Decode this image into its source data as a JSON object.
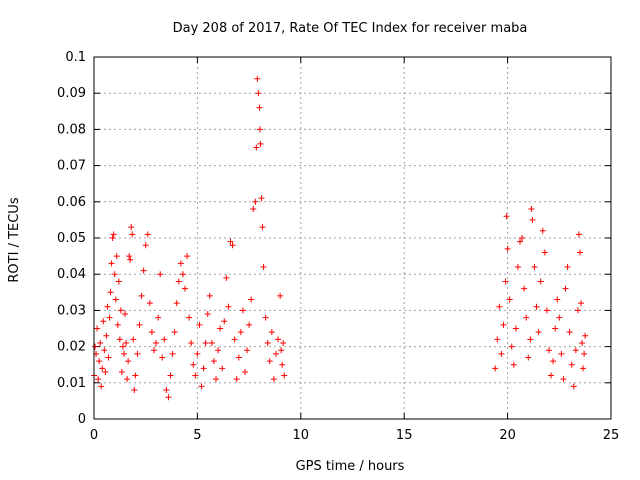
{
  "chart_data": {
    "type": "scatter",
    "title": "Day 208 of 2017, Rate Of TEC Index for receiver maba",
    "xlabel": "GPS time / hours",
    "ylabel": "ROTI / TECUs",
    "xlim": [
      0,
      25
    ],
    "ylim": [
      0,
      0.1
    ],
    "xticks": [
      "0",
      "5",
      "10",
      "15",
      "20",
      "25"
    ],
    "yticks": [
      "0",
      "0.01",
      "0.02",
      "0.03",
      "0.04",
      "0.05",
      "0.06",
      "0.07",
      "0.08",
      "0.09",
      "0.1"
    ],
    "grid": true,
    "marker": "+",
    "color": "#ff0000",
    "series": [
      {
        "points": [
          [
            0.0,
            0.012
          ],
          [
            0.05,
            0.02
          ],
          [
            0.1,
            0.018
          ],
          [
            0.15,
            0.025
          ],
          [
            0.2,
            0.011
          ],
          [
            0.25,
            0.016
          ],
          [
            0.3,
            0.021
          ],
          [
            0.35,
            0.009
          ],
          [
            0.4,
            0.014
          ],
          [
            0.45,
            0.027
          ],
          [
            0.5,
            0.019
          ],
          [
            0.55,
            0.013
          ],
          [
            0.6,
            0.023
          ],
          [
            0.65,
            0.031
          ],
          [
            0.7,
            0.017
          ],
          [
            0.75,
            0.028
          ],
          [
            0.8,
            0.035
          ],
          [
            0.85,
            0.043
          ],
          [
            0.9,
            0.05
          ],
          [
            0.95,
            0.051
          ],
          [
            1.0,
            0.04
          ],
          [
            1.05,
            0.033
          ],
          [
            1.1,
            0.045
          ],
          [
            1.15,
            0.026
          ],
          [
            1.2,
            0.038
          ],
          [
            1.25,
            0.022
          ],
          [
            1.3,
            0.03
          ],
          [
            1.35,
            0.013
          ],
          [
            1.4,
            0.02
          ],
          [
            1.45,
            0.018
          ],
          [
            1.5,
            0.029
          ],
          [
            1.55,
            0.021
          ],
          [
            1.6,
            0.011
          ],
          [
            1.65,
            0.016
          ],
          [
            1.7,
            0.045
          ],
          [
            1.75,
            0.044
          ],
          [
            1.8,
            0.053
          ],
          [
            1.85,
            0.051
          ],
          [
            1.9,
            0.022
          ],
          [
            1.95,
            0.008
          ],
          [
            2.0,
            0.012
          ],
          [
            2.1,
            0.018
          ],
          [
            2.2,
            0.026
          ],
          [
            2.3,
            0.034
          ],
          [
            2.4,
            0.041
          ],
          [
            2.5,
            0.048
          ],
          [
            2.6,
            0.051
          ],
          [
            2.7,
            0.032
          ],
          [
            2.8,
            0.024
          ],
          [
            2.9,
            0.019
          ],
          [
            3.0,
            0.021
          ],
          [
            3.1,
            0.028
          ],
          [
            3.2,
            0.04
          ],
          [
            3.3,
            0.017
          ],
          [
            3.4,
            0.022
          ],
          [
            3.5,
            0.008
          ],
          [
            3.6,
            0.006
          ],
          [
            3.7,
            0.012
          ],
          [
            3.8,
            0.018
          ],
          [
            3.9,
            0.024
          ],
          [
            4.0,
            0.032
          ],
          [
            4.1,
            0.038
          ],
          [
            4.2,
            0.043
          ],
          [
            4.3,
            0.04
          ],
          [
            4.4,
            0.036
          ],
          [
            4.5,
            0.045
          ],
          [
            4.6,
            0.028
          ],
          [
            4.7,
            0.021
          ],
          [
            4.8,
            0.015
          ],
          [
            4.9,
            0.012
          ],
          [
            5.0,
            0.018
          ],
          [
            5.1,
            0.026
          ],
          [
            5.2,
            0.009
          ],
          [
            5.3,
            0.014
          ],
          [
            5.4,
            0.021
          ],
          [
            5.5,
            0.029
          ],
          [
            5.6,
            0.034
          ],
          [
            5.7,
            0.021
          ],
          [
            5.8,
            0.016
          ],
          [
            5.9,
            0.011
          ],
          [
            6.0,
            0.019
          ],
          [
            6.1,
            0.025
          ],
          [
            6.2,
            0.014
          ],
          [
            6.3,
            0.027
          ],
          [
            6.4,
            0.039
          ],
          [
            6.5,
            0.031
          ],
          [
            6.6,
            0.049
          ],
          [
            6.7,
            0.048
          ],
          [
            6.8,
            0.022
          ],
          [
            6.9,
            0.011
          ],
          [
            7.0,
            0.017
          ],
          [
            7.1,
            0.024
          ],
          [
            7.2,
            0.03
          ],
          [
            7.3,
            0.013
          ],
          [
            7.4,
            0.019
          ],
          [
            7.5,
            0.026
          ],
          [
            7.6,
            0.033
          ],
          [
            7.7,
            0.058
          ],
          [
            7.8,
            0.06
          ],
          [
            7.85,
            0.075
          ],
          [
            7.9,
            0.094
          ],
          [
            7.95,
            0.09
          ],
          [
            8.0,
            0.086
          ],
          [
            8.02,
            0.08
          ],
          [
            8.05,
            0.076
          ],
          [
            8.1,
            0.061
          ],
          [
            8.15,
            0.053
          ],
          [
            8.2,
            0.042
          ],
          [
            8.3,
            0.028
          ],
          [
            8.4,
            0.021
          ],
          [
            8.5,
            0.016
          ],
          [
            8.6,
            0.024
          ],
          [
            8.7,
            0.011
          ],
          [
            8.8,
            0.018
          ],
          [
            8.9,
            0.022
          ],
          [
            9.0,
            0.034
          ],
          [
            9.05,
            0.019
          ],
          [
            9.1,
            0.015
          ],
          [
            9.15,
            0.021
          ],
          [
            9.2,
            0.012
          ],
          [
            19.4,
            0.014
          ],
          [
            19.5,
            0.022
          ],
          [
            19.6,
            0.031
          ],
          [
            19.7,
            0.018
          ],
          [
            19.8,
            0.026
          ],
          [
            19.9,
            0.038
          ],
          [
            19.95,
            0.056
          ],
          [
            20.0,
            0.047
          ],
          [
            20.1,
            0.033
          ],
          [
            20.2,
            0.02
          ],
          [
            20.3,
            0.015
          ],
          [
            20.4,
            0.025
          ],
          [
            20.5,
            0.042
          ],
          [
            20.6,
            0.049
          ],
          [
            20.7,
            0.05
          ],
          [
            20.8,
            0.036
          ],
          [
            20.9,
            0.028
          ],
          [
            21.0,
            0.017
          ],
          [
            21.1,
            0.022
          ],
          [
            21.15,
            0.058
          ],
          [
            21.2,
            0.055
          ],
          [
            21.3,
            0.042
          ],
          [
            21.4,
            0.031
          ],
          [
            21.5,
            0.024
          ],
          [
            21.6,
            0.038
          ],
          [
            21.7,
            0.052
          ],
          [
            21.8,
            0.046
          ],
          [
            21.9,
            0.03
          ],
          [
            22.0,
            0.019
          ],
          [
            22.1,
            0.012
          ],
          [
            22.2,
            0.016
          ],
          [
            22.3,
            0.025
          ],
          [
            22.4,
            0.033
          ],
          [
            22.5,
            0.028
          ],
          [
            22.6,
            0.018
          ],
          [
            22.7,
            0.011
          ],
          [
            22.8,
            0.036
          ],
          [
            22.9,
            0.042
          ],
          [
            23.0,
            0.024
          ],
          [
            23.1,
            0.015
          ],
          [
            23.2,
            0.009
          ],
          [
            23.3,
            0.019
          ],
          [
            23.4,
            0.03
          ],
          [
            23.45,
            0.051
          ],
          [
            23.5,
            0.046
          ],
          [
            23.55,
            0.032
          ],
          [
            23.6,
            0.021
          ],
          [
            23.65,
            0.014
          ],
          [
            23.7,
            0.018
          ],
          [
            23.75,
            0.023
          ]
        ]
      }
    ]
  }
}
